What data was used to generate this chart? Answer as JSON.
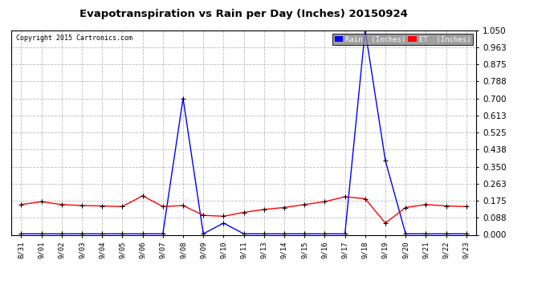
{
  "title": "Evapotranspiration vs Rain per Day (Inches) 20150924",
  "copyright": "Copyright 2015 Cartronics.com",
  "x_labels": [
    "8/31",
    "9/01",
    "9/02",
    "9/03",
    "9/04",
    "9/05",
    "9/06",
    "9/07",
    "9/08",
    "9/09",
    "9/10",
    "9/11",
    "9/13",
    "9/14",
    "9/15",
    "9/16",
    "9/17",
    "9/18",
    "9/19",
    "9/20",
    "9/21",
    "9/22",
    "9/23"
  ],
  "rain_values": [
    0.005,
    0.005,
    0.005,
    0.005,
    0.005,
    0.005,
    0.005,
    0.005,
    0.7,
    0.005,
    0.06,
    0.005,
    0.005,
    0.005,
    0.005,
    0.005,
    0.005,
    1.05,
    0.38,
    0.005,
    0.005,
    0.005,
    0.005
  ],
  "et_values": [
    0.155,
    0.17,
    0.155,
    0.15,
    0.148,
    0.145,
    0.2,
    0.145,
    0.15,
    0.1,
    0.095,
    0.115,
    0.13,
    0.14,
    0.155,
    0.17,
    0.195,
    0.185,
    0.06,
    0.14,
    0.155,
    0.148,
    0.145
  ],
  "rain_color": "#0000ff",
  "et_color": "#ff0000",
  "marker_color": "#000000",
  "background_color": "#ffffff",
  "grid_color": "#bbbbbb",
  "ylim": [
    0.0,
    1.05
  ],
  "yticks": [
    0.0,
    0.088,
    0.175,
    0.263,
    0.35,
    0.438,
    0.525,
    0.613,
    0.7,
    0.788,
    0.875,
    0.963,
    1.05
  ],
  "legend_rain_bg": "#0000ff",
  "legend_et_bg": "#ff0000",
  "legend_rain_text": "Rain  (Inches)"
}
